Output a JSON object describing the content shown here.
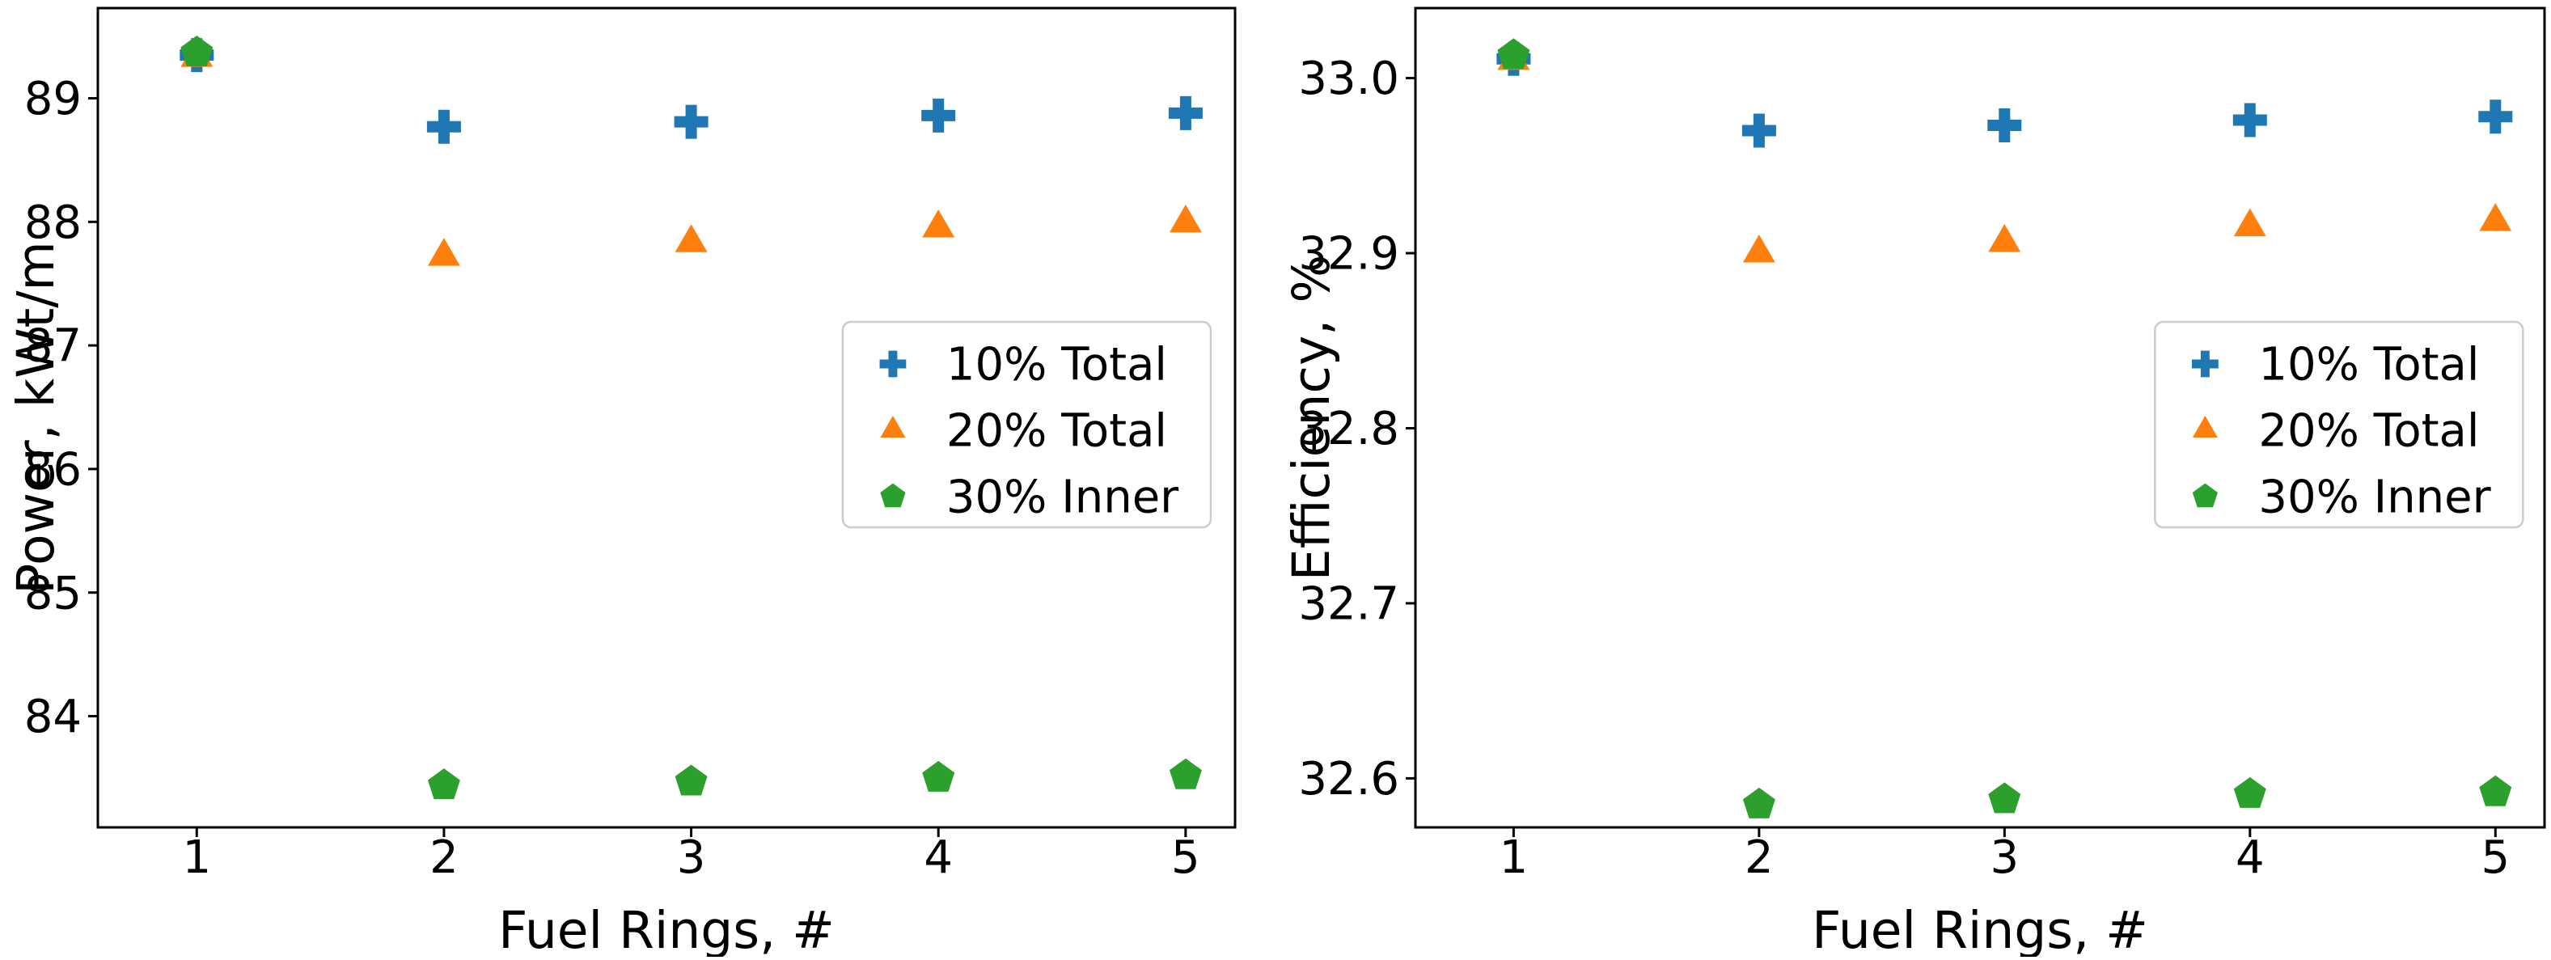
{
  "figure": {
    "background": "#ffffff",
    "axis_color": "#000000"
  },
  "chart_data": [
    {
      "type": "scatter",
      "title": "",
      "xlabel": "Fuel Rings, #",
      "ylabel": "Power, kWt/m",
      "x": [
        1,
        2,
        3,
        4,
        5
      ],
      "xtick_labels": [
        "1",
        "2",
        "3",
        "4",
        "5"
      ],
      "xlim": [
        0.6,
        5.2
      ],
      "ylim": [
        83.1,
        89.73
      ],
      "yticks": [
        84,
        85,
        86,
        87,
        88,
        89
      ],
      "ytick_labels": [
        "84",
        "85",
        "86",
        "87",
        "88",
        "89"
      ],
      "grid": false,
      "legend_position": "center right",
      "series": [
        {
          "name": "10% Total",
          "marker": "plus-icon",
          "color": "#1f77b4",
          "values": [
            89.35,
            88.77,
            88.81,
            88.86,
            88.88
          ]
        },
        {
          "name": "20% Total",
          "marker": "triangle-icon",
          "color": "#ff7f0e",
          "values": [
            89.33,
            87.72,
            87.83,
            87.95,
            87.99
          ]
        },
        {
          "name": "30% Inner",
          "marker": "pentagon-icon",
          "color": "#2ca02c",
          "values": [
            89.37,
            83.44,
            83.47,
            83.5,
            83.52
          ]
        }
      ]
    },
    {
      "type": "scatter",
      "title": "",
      "xlabel": "Fuel Rings, #",
      "ylabel": "Efficiency, %",
      "x": [
        1,
        2,
        3,
        4,
        5
      ],
      "xtick_labels": [
        "1",
        "2",
        "3",
        "4",
        "5"
      ],
      "xlim": [
        0.6,
        5.2
      ],
      "ylim": [
        32.572,
        33.04
      ],
      "yticks": [
        32.6,
        32.7,
        32.8,
        32.9,
        33.0
      ],
      "ytick_labels": [
        "32.6",
        "32.7",
        "32.8",
        "32.9",
        "33.0"
      ],
      "grid": false,
      "legend_position": "center right",
      "series": [
        {
          "name": "10% Total",
          "marker": "plus-icon",
          "color": "#1f77b4",
          "values": [
            33.011,
            32.97,
            32.973,
            32.976,
            32.978
          ]
        },
        {
          "name": "20% Total",
          "marker": "triangle-icon",
          "color": "#ff7f0e",
          "values": [
            33.01,
            32.9,
            32.906,
            32.915,
            32.918
          ]
        },
        {
          "name": "30% Inner",
          "marker": "pentagon-icon",
          "color": "#2ca02c",
          "values": [
            33.013,
            32.585,
            32.588,
            32.591,
            32.592
          ]
        }
      ]
    }
  ]
}
